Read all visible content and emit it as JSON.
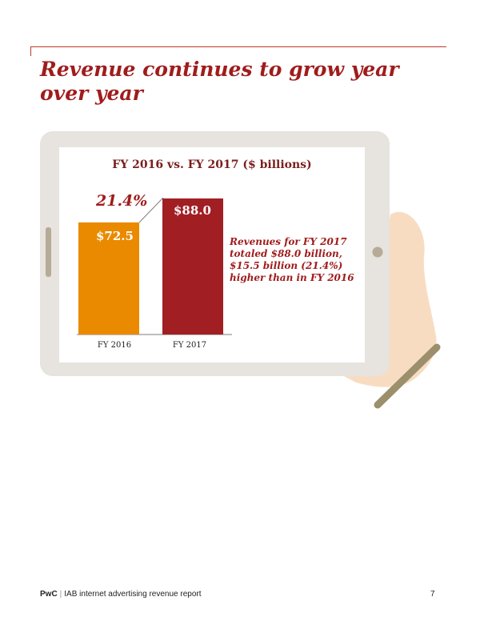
{
  "title": "Revenue continues to grow year over year",
  "chart_data": {
    "type": "bar",
    "title": "FY 2016 vs. FY 2017 ($ billions)",
    "categories": [
      "FY 2016",
      "FY 2017"
    ],
    "values": [
      72.5,
      88.0
    ],
    "value_labels": [
      "$72.5",
      "$88.0"
    ],
    "growth_label": "21.4%",
    "note": "Revenues for FY 2017 totaled $88.0 billion, $15.5 billion (21.4%) higher than in FY 2016",
    "colors": [
      "#ea8a00",
      "#a11f23"
    ],
    "ylim": [
      0,
      88.0
    ],
    "grid": false
  },
  "footer": {
    "brand": "PwC",
    "separator": "|",
    "report": "IAB internet advertising revenue report",
    "page_number": "7"
  },
  "colors": {
    "accent": "#a01c1c",
    "tablet_frame": "#e7e3de",
    "tablet_side": "#b5ab96",
    "hand": "#f8dcc2",
    "stylus": "#9b8f6c"
  }
}
